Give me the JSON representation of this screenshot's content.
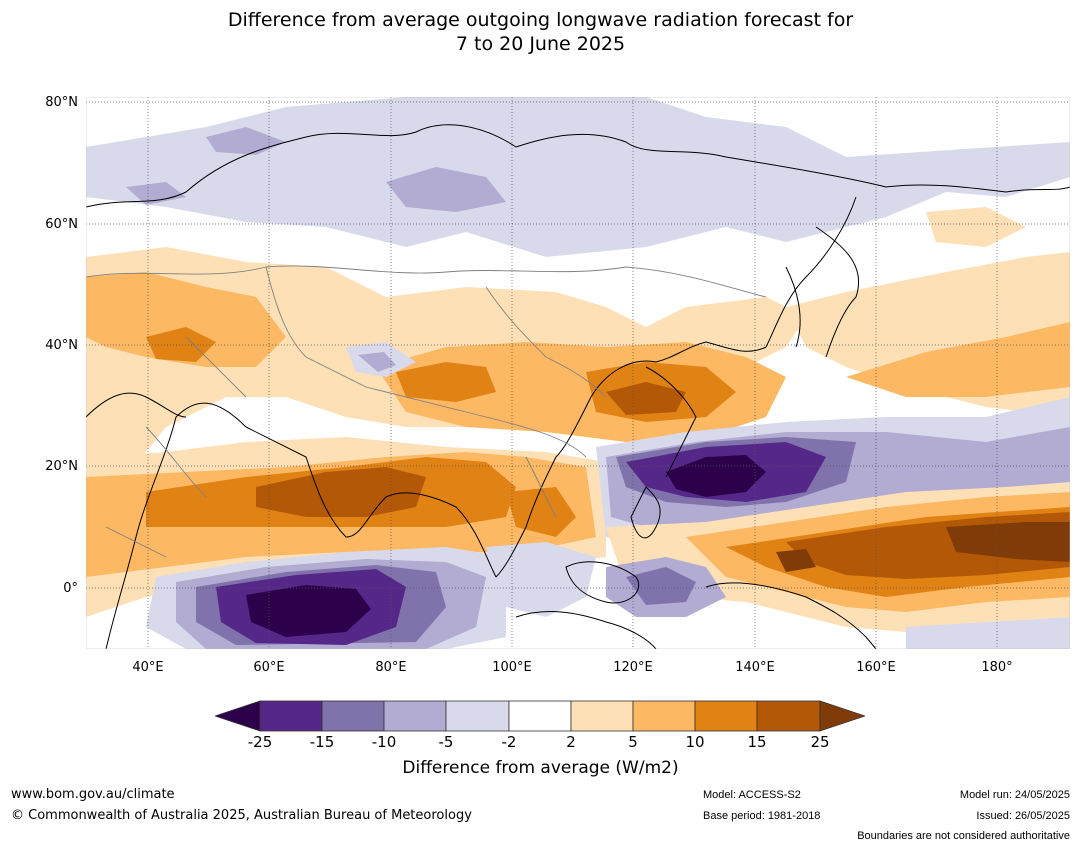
{
  "title": {
    "line1": "Difference from average outgoing longwave radiation forecast for",
    "line2": "7 to 20 June 2025"
  },
  "map": {
    "lat_labels": [
      "80°N",
      "60°N",
      "40°N",
      "20°N",
      "0°"
    ],
    "lon_labels": [
      "40°E",
      "60°E",
      "80°E",
      "100°E",
      "120°E",
      "140°E",
      "160°E",
      "180°"
    ],
    "colors": {
      "strong_neg": "#2d004b",
      "neg_25_15": "#542788",
      "neg_15_10": "#8073ac",
      "neg_10_5": "#b2abd2",
      "neg_5_2": "#d8daeb",
      "neutral": "#ffffff",
      "pos_2_5": "#fee0b6",
      "pos_5_10": "#fdb863",
      "pos_10_15": "#e08214",
      "pos_15_25": "#b35806",
      "strong_pos": "#7f3b08",
      "coast": "#000000",
      "border": "#808080"
    }
  },
  "colorbar": {
    "ticks": [
      "-25",
      "-15",
      "-10",
      "-5",
      "-2",
      "2",
      "5",
      "10",
      "15",
      "25"
    ],
    "label": "Difference from average (W/m2)"
  },
  "footer": {
    "website": "www.bom.gov.au/climate",
    "copyright": "© Commonwealth of Australia 2025, Australian Bureau of Meteorology",
    "model": "Model: ACCESS-S2",
    "base_period": "Base period: 1981-2018",
    "model_run": "Model run: 24/05/2025",
    "issued": "Issued: 26/05/2025",
    "disclaimer": "Boundaries are not considered authoritative"
  }
}
